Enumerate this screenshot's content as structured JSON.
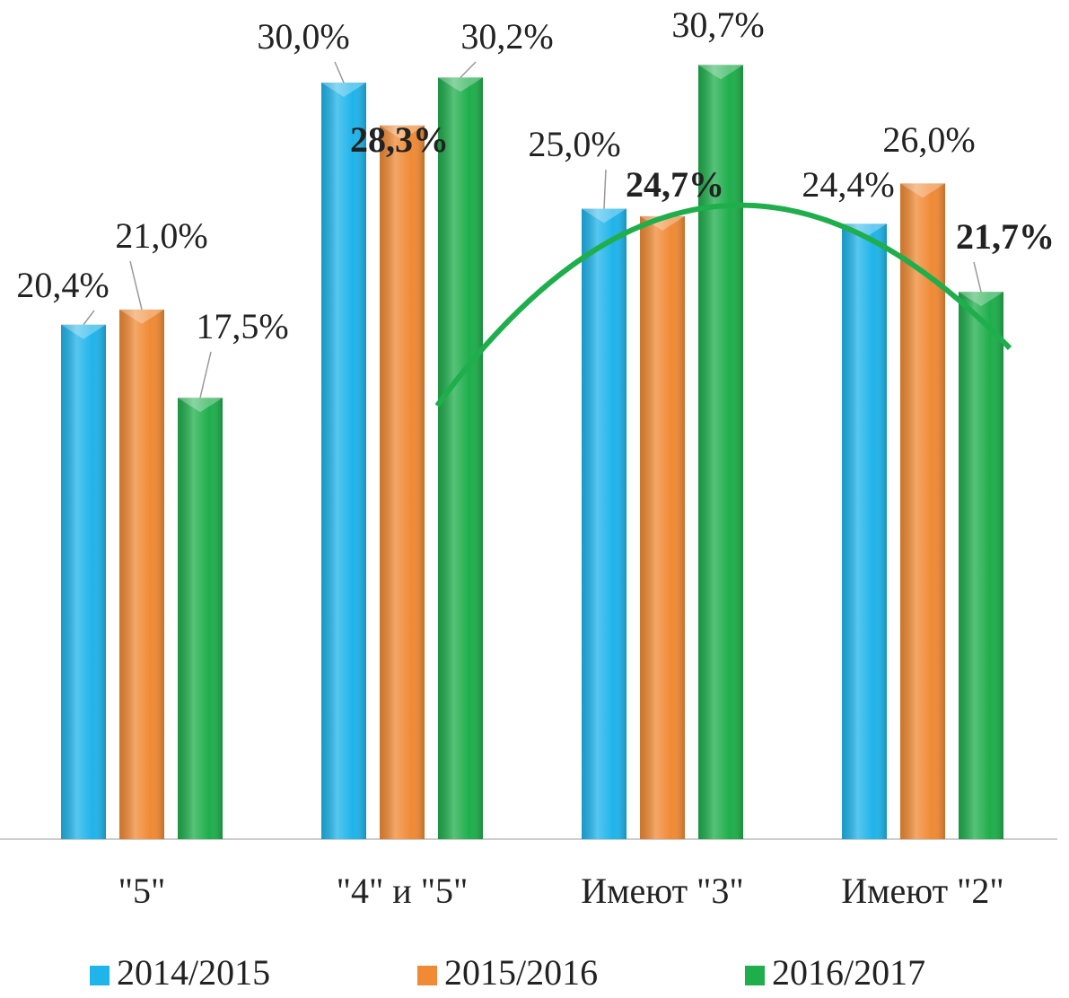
{
  "chart_data": {
    "type": "bar",
    "categories": [
      "\"5\"",
      "\"4\" и \"5\"",
      "Имеют \"3\"",
      "Имеют \"2\""
    ],
    "series": [
      {
        "name": "2014/2015",
        "color": "#1fb4ea",
        "values": [
          20.4,
          30.0,
          25.0,
          24.4
        ],
        "value_labels": [
          "20,4%",
          "30,0%",
          "25,0%",
          "24,4%"
        ]
      },
      {
        "name": "2015/2016",
        "color": "#f08a35",
        "values": [
          21.0,
          28.3,
          24.7,
          26.0
        ],
        "value_labels": [
          "21,0%",
          "28,3%",
          "24,7%",
          "26,0%"
        ]
      },
      {
        "name": "2016/2017",
        "color": "#1fae4c",
        "values": [
          17.5,
          30.2,
          30.7,
          21.7
        ],
        "value_labels": [
          "17,5%",
          "30,2%",
          "30,7%",
          "21,7%"
        ]
      }
    ],
    "legend": "bottom"
  }
}
